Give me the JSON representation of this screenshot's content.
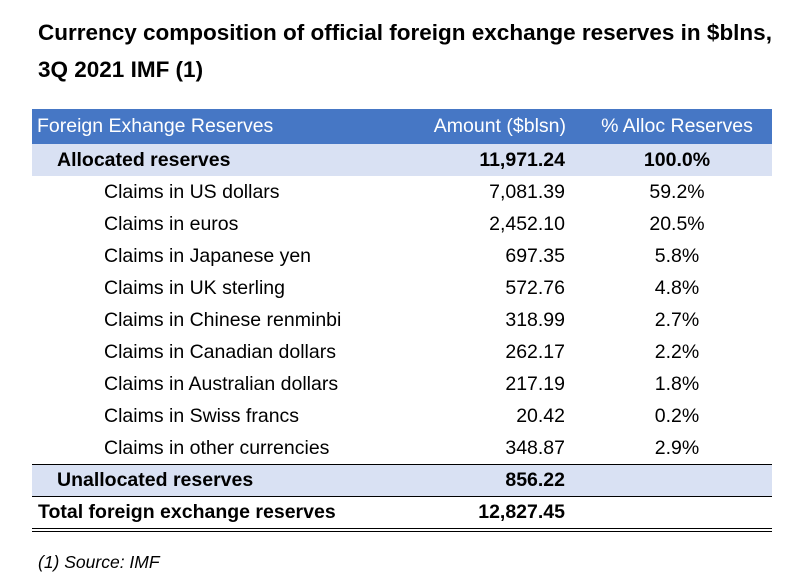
{
  "title": "Currency composition of official foreign exchange reserves in $blns, 3Q 2021 IMF (1)",
  "table": {
    "headers": [
      "Foreign Exhange Reserves",
      "Amount ($blsn)",
      "% Alloc Reserves"
    ],
    "allocated": {
      "label": "Allocated reserves",
      "amount": "11,971.24",
      "pct": "100.0%"
    },
    "claims": [
      {
        "label": "Claims in US dollars",
        "amount": "7,081.39",
        "pct": "59.2%"
      },
      {
        "label": "Claims in euros",
        "amount": "2,452.10",
        "pct": "20.5%"
      },
      {
        "label": "Claims in Japanese yen",
        "amount": "697.35",
        "pct": "5.8%"
      },
      {
        "label": "Claims in UK sterling",
        "amount": "572.76",
        "pct": "4.8%"
      },
      {
        "label": "Claims in Chinese renminbi",
        "amount": "318.99",
        "pct": "2.7%"
      },
      {
        "label": "Claims in Canadian dollars",
        "amount": "262.17",
        "pct": "2.2%"
      },
      {
        "label": "Claims in Australian dollars",
        "amount": "217.19",
        "pct": "1.8%"
      },
      {
        "label": "Claims in Swiss francs",
        "amount": "20.42",
        "pct": "0.2%"
      },
      {
        "label": "Claims in other currencies",
        "amount": "348.87",
        "pct": "2.9%"
      }
    ],
    "unallocated": {
      "label": "Unallocated reserves",
      "amount": "856.22"
    },
    "total": {
      "label": "Total foreign exchange reserves",
      "amount": "12,827.45"
    }
  },
  "footnote": "(1) Source: IMF",
  "colors": {
    "header_bg": "#4677c5",
    "shade_bg": "#d9e1f3"
  }
}
